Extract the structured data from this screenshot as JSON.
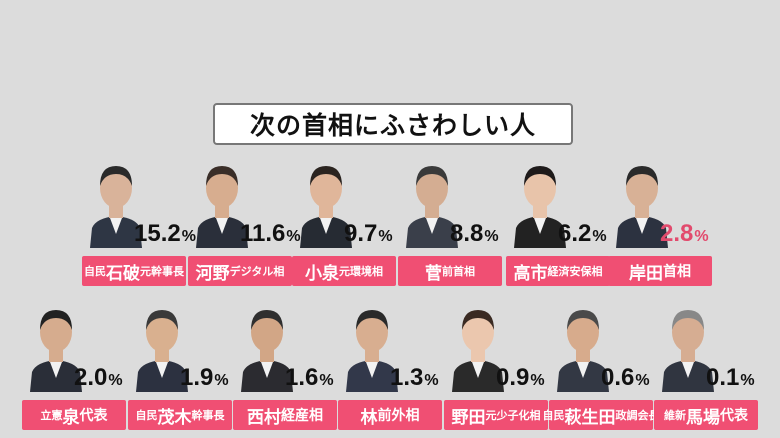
{
  "title": "次の首相にふさわしい人",
  "chart_data": {
    "type": "bar",
    "title": "次の首相にふさわしい人",
    "categories": [
      "石破",
      "河野",
      "小泉",
      "菅",
      "高市",
      "岸田",
      "泉",
      "茂木",
      "西村",
      "林",
      "野田",
      "萩生田",
      "馬場"
    ],
    "values": [
      15.2,
      11.6,
      9.7,
      8.8,
      6.2,
      2.8,
      2.0,
      1.9,
      1.6,
      1.3,
      0.9,
      0.6,
      0.1
    ],
    "unit": "%"
  },
  "colors": {
    "label_bg": "#f04f73",
    "highlight_text": "#e24a6d",
    "background": "#dcdcdc"
  },
  "people": [
    {
      "prefix": "自民",
      "name": "石破",
      "suffix": "元幹事長",
      "percent": "15.2",
      "highlight": false
    },
    {
      "prefix": "",
      "name": "河野",
      "suffix": "デジタル相",
      "percent": "11.6",
      "highlight": false
    },
    {
      "prefix": "",
      "name": "小泉",
      "suffix": "元環境相",
      "percent": "9.7",
      "highlight": false
    },
    {
      "prefix": "",
      "name": "菅",
      "suffix": "前首相",
      "percent": "8.8",
      "highlight": false
    },
    {
      "prefix": "",
      "name": "高市",
      "suffix": "経済安保相",
      "percent": "6.2",
      "highlight": false
    },
    {
      "prefix": "",
      "name": "岸田",
      "suffix": "首相",
      "percent": "2.8",
      "highlight": true
    },
    {
      "prefix": "立憲",
      "name": "泉",
      "suffix": "代表",
      "percent": "2.0",
      "highlight": false
    },
    {
      "prefix": "自民",
      "name": "茂木",
      "suffix": "幹事長",
      "percent": "1.9",
      "highlight": false
    },
    {
      "prefix": "",
      "name": "西村",
      "suffix": "経産相",
      "percent": "1.6",
      "highlight": false
    },
    {
      "prefix": "",
      "name": "林",
      "suffix": "前外相",
      "percent": "1.3",
      "highlight": false
    },
    {
      "prefix": "",
      "name": "野田",
      "suffix": "元少子化相",
      "percent": "0.9",
      "highlight": false
    },
    {
      "prefix": "自民",
      "name": "萩生田",
      "suffix": "政調会長",
      "percent": "0.6",
      "highlight": false
    },
    {
      "prefix": "維新",
      "name": "馬場",
      "suffix": "代表",
      "percent": "0.1",
      "highlight": false
    }
  ],
  "percent_unit": "%"
}
